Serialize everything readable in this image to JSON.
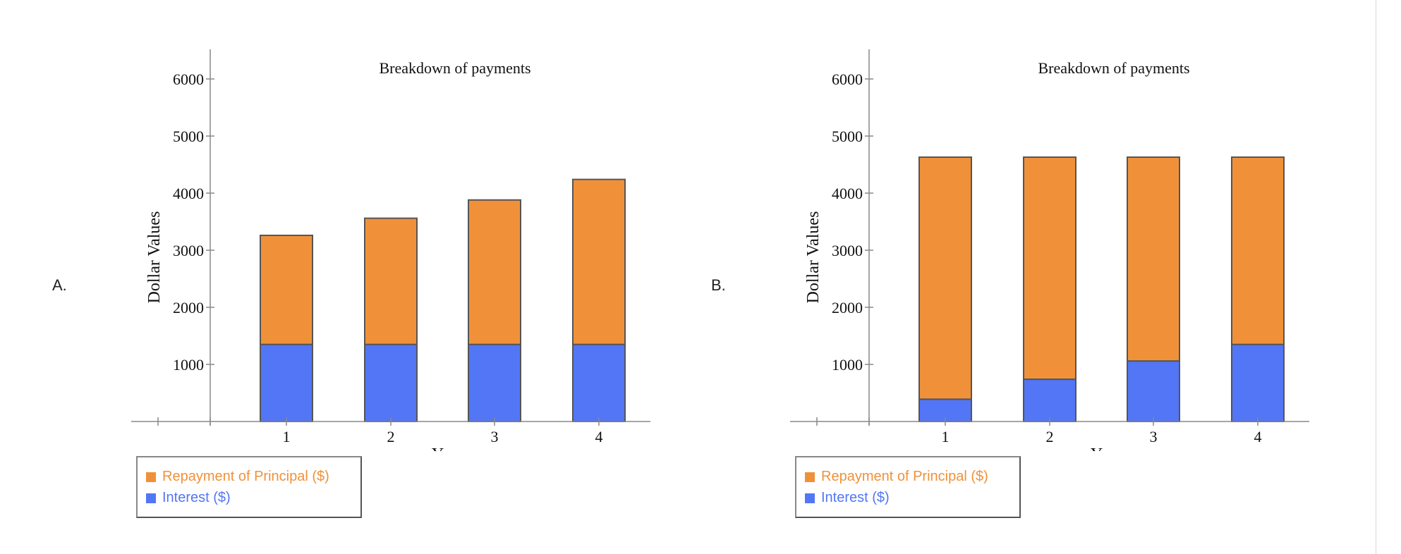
{
  "options": [
    {
      "label": "A."
    },
    {
      "label": "B."
    }
  ],
  "colors": {
    "principal": "#F0913A",
    "interest": "#5276F5",
    "axis": "#888888",
    "bar_border": "#555555"
  },
  "chart_data": [
    {
      "type": "bar",
      "stacked": true,
      "title": "Breakdown of payments",
      "xlabel": "Year",
      "ylabel": "Dollar Values",
      "categories": [
        "1",
        "2",
        "3",
        "4"
      ],
      "yticks": [
        "1000",
        "2000",
        "3000",
        "4000",
        "5000",
        "6000"
      ],
      "ylim": [
        0,
        6500
      ],
      "grid": false,
      "legend_position": "bottom-left",
      "series": [
        {
          "name": "Interest ($)",
          "values": [
            1350,
            1350,
            1350,
            1350
          ]
        },
        {
          "name": "Repayment of Principal ($)",
          "values": [
            1910,
            2210,
            2530,
            2890
          ]
        }
      ]
    },
    {
      "type": "bar",
      "stacked": true,
      "title": "Breakdown of payments",
      "xlabel": "Year",
      "ylabel": "Dollar Values",
      "categories": [
        "1",
        "2",
        "3",
        "4"
      ],
      "yticks": [
        "1000",
        "2000",
        "3000",
        "4000",
        "5000",
        "6000"
      ],
      "ylim": [
        0,
        6500
      ],
      "grid": false,
      "legend_position": "bottom-left",
      "series": [
        {
          "name": "Interest ($)",
          "values": [
            390,
            740,
            1060,
            1350
          ]
        },
        {
          "name": "Repayment of Principal ($)",
          "values": [
            4240,
            3890,
            3570,
            3280
          ]
        }
      ]
    }
  ]
}
